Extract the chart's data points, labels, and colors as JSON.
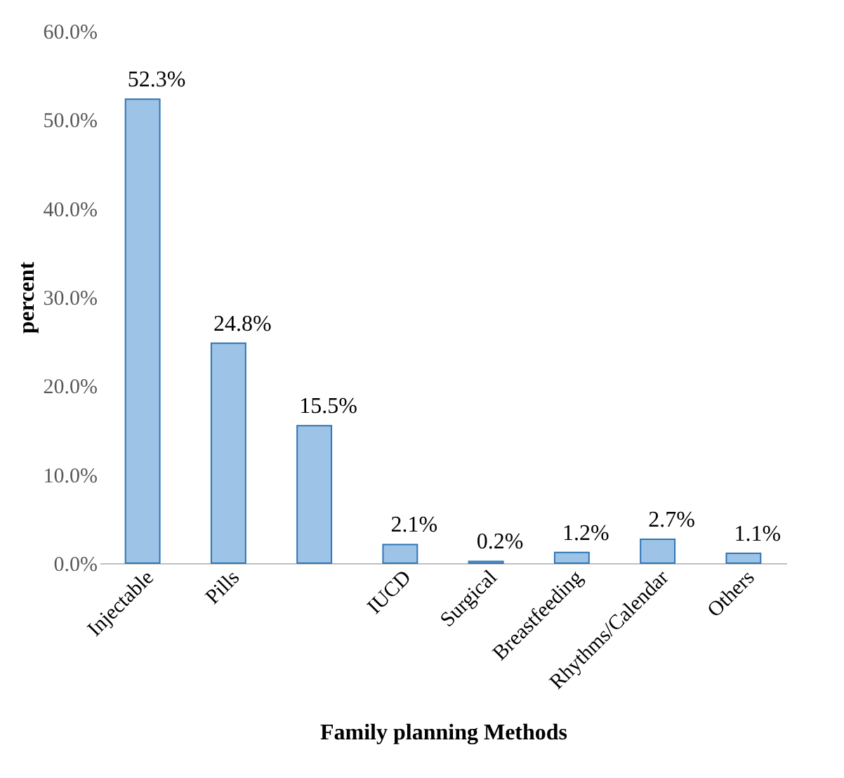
{
  "chart_data": {
    "type": "bar",
    "xlabel": "Family planning Methods",
    "ylabel": "percent",
    "categories": [
      "Injectable",
      "Pills",
      null,
      "IUCD",
      "Surgical",
      "Breastfeeding",
      "Rhythms/Calendar",
      "Others"
    ],
    "values": [
      52.3,
      24.8,
      15.5,
      2.1,
      0.2,
      1.2,
      2.7,
      1.1
    ],
    "value_labels": [
      "52.3%",
      "24.8%",
      "15.5%",
      "2.1%",
      "0.2%",
      "1.2%",
      "2.7%",
      "1.1%"
    ],
    "color": "#9dc3e6",
    "ylim": [
      0,
      60
    ],
    "yticks": [
      {
        "value": 0,
        "label": "0.0%"
      },
      {
        "value": 10,
        "label": "10.0%"
      },
      {
        "value": 20,
        "label": "20.0%"
      },
      {
        "value": 30,
        "label": "30.0%"
      },
      {
        "value": 40,
        "label": "40.0%"
      },
      {
        "value": 50,
        "label": "50.0%"
      },
      {
        "value": 60,
        "label": "60.0%"
      }
    ],
    "grid": false
  }
}
